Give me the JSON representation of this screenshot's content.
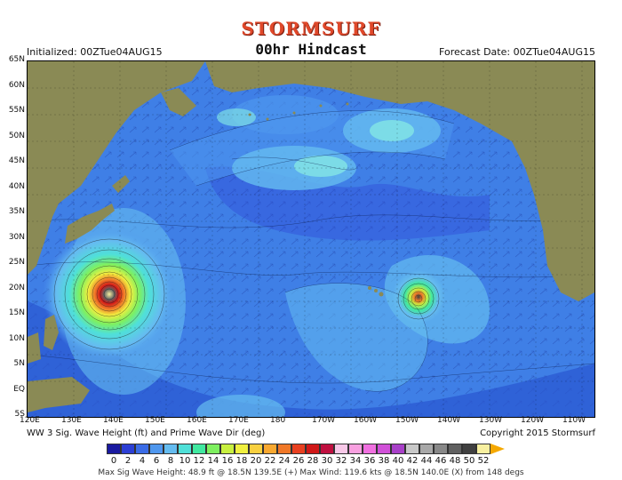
{
  "brand": "STORMSURF",
  "title": "00hr Hindcast",
  "initialized": "Initialized: 00ZTue04AUG15",
  "forecast_date": "Forecast Date: 00ZTue04AUG15",
  "caption_left": "WW 3 Sig. Wave Height (ft) and Prime Wave Dir (deg)",
  "caption_right": "Copyright 2015 Stormsurf",
  "stats": "Max Sig Wave Height: 48.9 ft @ 18.5N 139.5E (+)   Max Wind: 119.6 kts @ 18.5N 140.0E (X) from 148 degs",
  "lat_labels": [
    "65N",
    "60N",
    "55N",
    "50N",
    "45N",
    "40N",
    "35N",
    "30N",
    "25N",
    "20N",
    "15N",
    "10N",
    "5N",
    "EQ",
    "5S"
  ],
  "lon_labels": [
    "120E",
    "130E",
    "140E",
    "150E",
    "160E",
    "170E",
    "180",
    "170W",
    "160W",
    "150W",
    "140W",
    "130W",
    "120W",
    "110W"
  ],
  "scale_labels": [
    "0",
    "2",
    "4",
    "6",
    "8",
    "10",
    "12",
    "14",
    "16",
    "18",
    "20",
    "22",
    "24",
    "26",
    "28",
    "30",
    "32",
    "34",
    "36",
    "38",
    "40",
    "42",
    "44",
    "46",
    "48",
    "50",
    "52"
  ],
  "scale_colors": [
    "#1a1aa0",
    "#2c3fd4",
    "#3b6ce6",
    "#4f97ee",
    "#65bcf0",
    "#4fe0d8",
    "#40e8a0",
    "#7ef060",
    "#c8f040",
    "#f0f040",
    "#f8d040",
    "#f8a830",
    "#f07828",
    "#e84020",
    "#d01818",
    "#c01040",
    "#f8c8e8",
    "#f8a0e0",
    "#f070e0",
    "#d050d8",
    "#a840c8",
    "#c8c8c8",
    "#a8a8a8",
    "#888888",
    "#606060",
    "#404040",
    "#f8f0a0"
  ],
  "colors": {
    "ocean_deep": "#2a55d0",
    "ocean_mid": "#3f7fe6",
    "ocean_light": "#6fb8f2",
    "ocean_swell": "#7fe0e6",
    "land": "#8a8a55",
    "brand": "#e0482a"
  }
}
